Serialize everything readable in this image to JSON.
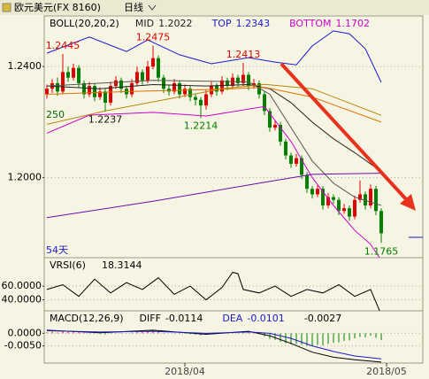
{
  "header": {
    "symbol": "欧元美元(FX 8160)",
    "period": "日线"
  },
  "chart_data": [
    {
      "type": "candlestick",
      "title": "BOLL(20,20,2)",
      "up_color": "#e00000",
      "down_color": "#008000",
      "grid": true,
      "open": [
        1.23,
        1.232,
        1.234,
        1.231,
        1.238,
        1.236,
        1.2395,
        1.234,
        1.23,
        1.233,
        1.229,
        1.231,
        1.227,
        1.233,
        1.235,
        1.232,
        1.23,
        1.234,
        1.238,
        1.235,
        1.24,
        1.243,
        1.236,
        1.232,
        1.231,
        1.234,
        1.23,
        1.232,
        1.229,
        1.228,
        1.226,
        1.23,
        1.233,
        1.231,
        1.235,
        1.233,
        1.236,
        1.234,
        1.237,
        1.233,
        1.234,
        1.23,
        1.224,
        1.218,
        1.219,
        1.213,
        1.208,
        1.205,
        1.207,
        1.201,
        1.196,
        1.194,
        1.196,
        1.19,
        1.193,
        1.192,
        1.188,
        1.189,
        1.186,
        1.192,
        1.194,
        1.19,
        1.196,
        1.188
      ],
      "high": [
        1.2335,
        1.2355,
        1.236,
        1.2445,
        1.24,
        1.241,
        1.2405,
        1.235,
        1.2345,
        1.234,
        1.2325,
        1.232,
        1.2345,
        1.2365,
        1.236,
        1.233,
        1.2355,
        1.24,
        1.239,
        1.242,
        1.2475,
        1.244,
        1.237,
        1.2335,
        1.2355,
        1.235,
        1.2335,
        1.233,
        1.23,
        1.229,
        1.2315,
        1.2345,
        1.234,
        1.2365,
        1.236,
        1.2375,
        1.237,
        1.2413,
        1.238,
        1.2355,
        1.235,
        1.231,
        1.225,
        1.2205,
        1.22,
        1.214,
        1.209,
        1.2085,
        1.208,
        1.202,
        1.197,
        1.1975,
        1.197,
        1.1945,
        1.194,
        1.193,
        1.1905,
        1.19,
        1.1935,
        1.199,
        1.195,
        1.1975,
        1.197,
        1.189
      ],
      "low": [
        1.2285,
        1.2305,
        1.2295,
        1.23,
        1.2345,
        1.235,
        1.2325,
        1.2285,
        1.229,
        1.2275,
        1.228,
        1.2237,
        1.226,
        1.232,
        1.2305,
        1.2285,
        1.229,
        1.233,
        1.2335,
        1.234,
        1.239,
        1.2345,
        1.2305,
        1.2295,
        1.23,
        1.2285,
        1.229,
        1.2275,
        1.226,
        1.2214,
        1.2245,
        1.229,
        1.2295,
        1.23,
        1.2315,
        1.232,
        1.2325,
        1.233,
        1.2315,
        1.232,
        1.2285,
        1.2225,
        1.2165,
        1.217,
        1.2115,
        1.2065,
        1.2035,
        1.204,
        1.1995,
        1.1945,
        1.1925,
        1.193,
        1.1885,
        1.189,
        1.1905,
        1.1865,
        1.187,
        1.1845,
        1.185,
        1.191,
        1.1885,
        1.189,
        1.1865,
        1.1765
      ],
      "close": [
        1.232,
        1.234,
        1.231,
        1.238,
        1.236,
        1.2395,
        1.234,
        1.23,
        1.233,
        1.229,
        1.231,
        1.227,
        1.233,
        1.235,
        1.232,
        1.23,
        1.234,
        1.238,
        1.235,
        1.24,
        1.243,
        1.236,
        1.232,
        1.231,
        1.234,
        1.23,
        1.232,
        1.229,
        1.228,
        1.226,
        1.23,
        1.233,
        1.231,
        1.235,
        1.233,
        1.236,
        1.234,
        1.237,
        1.233,
        1.234,
        1.23,
        1.224,
        1.218,
        1.219,
        1.213,
        1.208,
        1.205,
        1.207,
        1.201,
        1.196,
        1.194,
        1.196,
        1.19,
        1.193,
        1.192,
        1.188,
        1.189,
        1.186,
        1.192,
        1.194,
        1.19,
        1.196,
        1.188,
        1.18
      ],
      "series": [
        {
          "name": "MID",
          "color": "#222222",
          "x": [
            0,
            10,
            20,
            30,
            38,
            42,
            46,
            50,
            54,
            58,
            63
          ],
          "values": [
            1.233,
            1.232,
            1.2335,
            1.233,
            1.2335,
            1.232,
            1.227,
            1.22,
            1.214,
            1.209,
            1.2022
          ]
        },
        {
          "name": "TOP",
          "color": "#1a1acc",
          "x": [
            0,
            8,
            15,
            19,
            25,
            31,
            38,
            43,
            47,
            50,
            54,
            57,
            60,
            63
          ],
          "values": [
            1.2448,
            1.2506,
            1.2454,
            1.2496,
            1.2442,
            1.241,
            1.2432,
            1.2416,
            1.2406,
            1.2474,
            1.2528,
            1.2518,
            1.2464,
            1.2343
          ]
        },
        {
          "name": "BOTTOM",
          "color": "#cc00cc",
          "x": [
            0,
            8,
            20,
            30,
            41,
            46,
            50,
            54,
            58,
            61,
            63
          ],
          "values": [
            1.216,
            1.2225,
            1.2235,
            1.2222,
            1.2256,
            1.213,
            1.2,
            1.19,
            1.181,
            1.176,
            1.1702
          ]
        },
        {
          "color": "#b8860b",
          "x": [
            0,
            11,
            33,
            41,
            50,
            63
          ],
          "values": [
            1.2192,
            1.224,
            1.232,
            1.2336,
            1.232,
            1.2224
          ]
        },
        {
          "color": "#e07000",
          "x": [
            0,
            15,
            33,
            41,
            50,
            63
          ],
          "values": [
            1.23,
            1.231,
            1.2318,
            1.2325,
            1.229,
            1.22
          ]
        },
        {
          "color": "#555555",
          "x": [
            0,
            20,
            38,
            42,
            46,
            50,
            54,
            58,
            63
          ],
          "values": [
            1.233,
            1.235,
            1.2345,
            1.23,
            1.218,
            1.206,
            1.198,
            1.193,
            1.19
          ]
        },
        {
          "color": "#6a0dad",
          "x": [
            0,
            20,
            40,
            50,
            63
          ],
          "values": [
            1.1856,
            1.1915,
            1.198,
            1.2012,
            1.2016
          ]
        }
      ],
      "annotations": [
        "250",
        "54天"
      ],
      "ylim": [
        1.1712,
        1.2582
      ],
      "yticks": [
        {
          "value": 1.24,
          "label": "1.2400"
        },
        {
          "value": 1.2,
          "label": "1.2000"
        }
      ],
      "xlim": [
        -0.5,
        70.83
      ],
      "xticks": [
        {
          "value": 26,
          "label": "2018/04"
        },
        {
          "value": 64,
          "label": "2018/05"
        }
      ]
    },
    {
      "type": "line",
      "title": "VRSI(6)",
      "grid": true,
      "series": [
        {
          "color": "#000000",
          "x": [
            0,
            3,
            6,
            9,
            12,
            15,
            18,
            21,
            24,
            27,
            30,
            33,
            35,
            36,
            37,
            40,
            43,
            46,
            49,
            52,
            55,
            58,
            61,
            63
          ],
          "values": [
            55,
            62,
            45,
            70,
            50,
            65,
            55,
            72,
            48,
            60,
            40,
            58,
            80,
            78,
            55,
            50,
            60,
            45,
            55,
            50,
            62,
            45,
            55,
            18.3144
          ]
        }
      ],
      "ylim": [
        24,
        101.3
      ],
      "yticks": [
        {
          "value": 60,
          "label": "60.0000"
        },
        {
          "value": 40,
          "label": "40.0000"
        }
      ]
    },
    {
      "type": "macd",
      "title": "MACD(12,26,9)",
      "grid": true,
      "up_color": "#e00000",
      "down_color": "#008000",
      "histogram": [
        0.0004,
        0.0006,
        0.0003,
        0.0008,
        0.0007,
        0.0009,
        0.0005,
        0.0002,
        0.0001,
        -0.0002,
        -0.0003,
        -0.0005,
        -0.0002,
        0.0001,
        0.0002,
        0.0001,
        0.0003,
        0.0006,
        0.0005,
        0.0008,
        0.001,
        0.0006,
        0.0002,
        0,
        0.0001,
        -0.0002,
        -0.0002,
        -0.0004,
        -0.0006,
        -0.0008,
        -0.0005,
        -0.0002,
        0,
        0.0003,
        0.0002,
        0.0004,
        0.0003,
        0.0005,
        0.0002,
        0.0002,
        -0.0004,
        -0.0012,
        -0.0022,
        -0.0026,
        -0.0034,
        -0.004,
        -0.0044,
        -0.0042,
        -0.0046,
        -0.005,
        -0.005,
        -0.0046,
        -0.0048,
        -0.0042,
        -0.0038,
        -0.0036,
        -0.003,
        -0.0028,
        -0.002,
        -0.0014,
        -0.0016,
        -0.001,
        -0.0018,
        -0.0027
      ],
      "series": [
        {
          "name": "DIFF",
          "color": "#000000",
          "x": [
            0,
            10,
            20,
            30,
            38,
            42,
            46,
            50,
            54,
            58,
            63
          ],
          "values": [
            0.0012,
            0.0002,
            0.0012,
            -0.0004,
            0.0008,
            -0.001,
            -0.004,
            -0.0075,
            -0.0095,
            -0.0105,
            -0.0114
          ]
        },
        {
          "name": "DEA",
          "color": "#1a1acc",
          "x": [
            0,
            10,
            20,
            30,
            38,
            42,
            46,
            50,
            54,
            58,
            63
          ],
          "values": [
            0.001,
            0.0005,
            0.0008,
            0,
            0.0005,
            0,
            -0.002,
            -0.005,
            -0.0072,
            -0.009,
            -0.0101
          ]
        }
      ],
      "ylim": [
        -0.0118,
        0.0089
      ],
      "yticks": [
        {
          "value": 0,
          "label": "0.0000"
        },
        {
          "value": -0.005,
          "label": "-0.0050"
        }
      ]
    }
  ]
}
